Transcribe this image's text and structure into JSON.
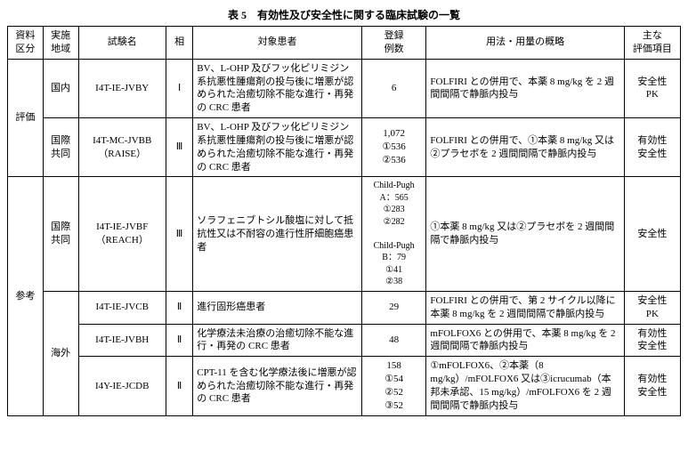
{
  "title": "表 5　有効性及び安全性に関する臨床試験の一覧",
  "headers": {
    "category": "資料\n区分",
    "region": "実施\n地域",
    "trial": "試験名",
    "phase": "相",
    "subjects": "対象患者",
    "n": "登録\n例数",
    "dose": "用法・用量の概略",
    "endpoint": "主な\n評価項目"
  },
  "rows": [
    {
      "category": "評価",
      "region": "国内",
      "trial": "I4T-IE-JVBY",
      "phase": "Ⅰ",
      "subjects": "BV、L-OHP 及びフッ化ピリミジン系抗悪性腫瘍剤の投与後に増悪が認められた治癒切除不能な進行・再発の CRC 患者",
      "n": "6",
      "dose": "FOLFIRI との併用で、本薬 8 mg/kg を 2 週間間隔で静脈内投与",
      "endpoint": "安全性\nPK"
    },
    {
      "region": "国際\n共同",
      "trial": "I4T-MC-JVBB\n（RAISE）",
      "phase": "Ⅲ",
      "subjects": "BV、L-OHP 及びフッ化ピリミジン系抗悪性腫瘍剤の投与後に増悪が認められた治癒切除不能な進行・再発の CRC 患者",
      "n": "1,072\n①536\n②536",
      "dose": "FOLFIRI との併用で、①本薬 8 mg/kg 又は②プラセボを 2 週間間隔で静脈内投与",
      "endpoint": "有効性\n安全性"
    },
    {
      "category": "参考",
      "region": "国際\n共同",
      "trial": "I4T-IE-JVBF\n（REACH）",
      "phase": "Ⅲ",
      "subjects": "ソラフェニブトシル酸塩に対して抵抗性又は不耐容の進行性肝細胞癌患者",
      "n": "Child-Pugh A：565\n①283\n②282\n\nChild-Pugh B：79\n①41\n②38",
      "dose": "①本薬 8 mg/kg 又は②プラセボを 2 週間間隔で静脈内投与",
      "endpoint": "安全性"
    },
    {
      "region": "海外",
      "trial": "I4T-IE-JVCB",
      "phase": "Ⅱ",
      "subjects": "進行固形癌患者",
      "n": "29",
      "dose": "FOLFIRI との併用で、第 2 サイクル以降に本薬 8 mg/kg を 2 週間間隔で静脈内投与",
      "endpoint": "安全性\nPK"
    },
    {
      "trial": "I4T-IE-JVBH",
      "phase": "Ⅱ",
      "subjects": "化学療法未治療の治癒切除不能な進行・再発の CRC 患者",
      "n": "48",
      "dose": "mFOLFOX6 との併用で、本薬 8 mg/kg を 2 週間間隔で静脈内投与",
      "endpoint": "有効性\n安全性"
    },
    {
      "trial": "I4Y-IE-JCDB",
      "phase": "Ⅱ",
      "subjects": "CPT-11 を含む化学療法後に増悪が認められた治癒切除不能な進行・再発の CRC 患者",
      "n": "158\n①54\n②52\n③52",
      "dose": "①mFOLFOX6、②本薬（8 mg/kg）/mFOLFOX6 又は③icrucumab（本邦未承認、15 mg/kg）/mFOLFOX6 を 2 週間間隔で静脈内投与",
      "endpoint": "有効性\n安全性"
    }
  ]
}
